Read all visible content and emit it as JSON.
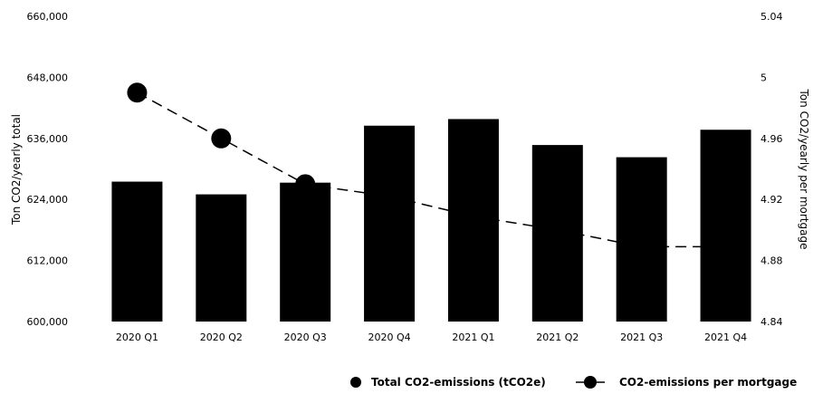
{
  "chart_data": {
    "type": "bar",
    "categories": [
      "2020 Q1",
      "2020 Q2",
      "2020 Q3",
      "2020 Q4",
      "2021 Q1",
      "2021 Q2",
      "2021 Q3",
      "2021 Q4"
    ],
    "series": [
      {
        "name": "Total CO2-emissions (tCO2e)",
        "type": "bar",
        "axis": "left",
        "color": "#000000",
        "values": [
          627500,
          625000,
          627300,
          638500,
          639800,
          634700,
          632300,
          637700
        ]
      },
      {
        "name": "CO2-emissions per mortgage",
        "type": "line",
        "axis": "right",
        "line_style": "dashed",
        "marker": "circle",
        "color": "#000000",
        "values": [
          4.99,
          4.96,
          4.93,
          4.922,
          4.909,
          4.9,
          4.889,
          4.889
        ],
        "markers_shown_on": [
          "2020 Q1",
          "2020 Q2",
          "2020 Q3"
        ]
      }
    ],
    "ylabel": "Ton CO2/yearly total",
    "y2label": "Ton CO2/yearly per mortgage",
    "ylim": [
      600000,
      660000
    ],
    "y2lim": [
      4.84,
      5.04
    ],
    "yticks": [
      "600,000",
      "612,000",
      "624,000",
      "636,000",
      "648,000",
      "660,000"
    ],
    "y2ticks": [
      "4.84",
      "4.88",
      "4.92",
      "4.96",
      "5",
      "5.04"
    ],
    "grid": false,
    "legend_position": "bottom-right"
  }
}
